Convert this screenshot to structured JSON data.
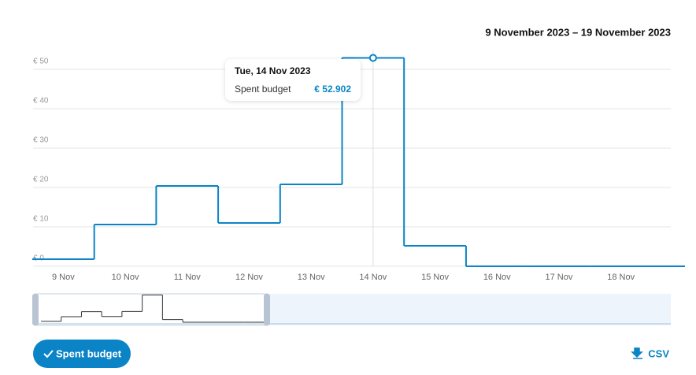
{
  "chart_data": {
    "type": "step",
    "date_range": "9 November 2023 – 19 November 2023",
    "categories": [
      "9 Nov",
      "10 Nov",
      "11 Nov",
      "12 Nov",
      "13 Nov",
      "14 Nov",
      "15 Nov",
      "16 Nov",
      "17 Nov",
      "18 Nov",
      null
    ],
    "series": [
      {
        "name": "Spent budget",
        "color": "#0a84c6",
        "values": [
          1.8,
          10.6,
          20.4,
          11,
          20.8,
          52.902,
          5.2,
          0,
          0,
          0,
          0
        ],
        "value_labels": [
          null,
          null,
          null,
          null,
          null,
          "€ 52.902",
          null,
          null,
          null,
          null,
          null
        ]
      }
    ],
    "ylim": [
      0,
      55
    ],
    "yticks": [
      {
        "value": 0,
        "label": "€ 0"
      },
      {
        "value": 10,
        "label": "€ 10"
      },
      {
        "value": 20,
        "label": "€ 20"
      },
      {
        "value": 30,
        "label": "€ 30"
      },
      {
        "value": 40,
        "label": "€ 40"
      },
      {
        "value": 50,
        "label": "€ 50"
      }
    ],
    "grid": true,
    "tooltip": {
      "title": "Tue, 14 Nov 2023",
      "index": 5
    },
    "export_label": "CSV"
  }
}
